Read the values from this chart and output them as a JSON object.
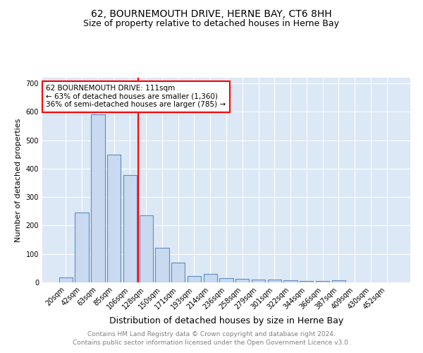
{
  "title": "62, BOURNEMOUTH DRIVE, HERNE BAY, CT6 8HH",
  "subtitle": "Size of property relative to detached houses in Herne Bay",
  "xlabel": "Distribution of detached houses by size in Herne Bay",
  "ylabel": "Number of detached properties",
  "categories": [
    "20sqm",
    "42sqm",
    "63sqm",
    "85sqm",
    "106sqm",
    "128sqm",
    "150sqm",
    "171sqm",
    "193sqm",
    "214sqm",
    "236sqm",
    "258sqm",
    "279sqm",
    "301sqm",
    "322sqm",
    "344sqm",
    "366sqm",
    "387sqm",
    "409sqm",
    "430sqm",
    "452sqm"
  ],
  "values": [
    18,
    247,
    590,
    450,
    378,
    237,
    122,
    70,
    22,
    30,
    14,
    13,
    10,
    9,
    7,
    6,
    5,
    8,
    0,
    0,
    0
  ],
  "bar_color": "#c9d9f0",
  "bar_edge_color": "#5b8ec4",
  "vline_x": 4.5,
  "vline_color": "red",
  "annotation_text": "62 BOURNEMOUTH DRIVE: 111sqm\n← 63% of detached houses are smaller (1,360)\n36% of semi-detached houses are larger (785) →",
  "annotation_box_color": "white",
  "annotation_box_edge": "red",
  "ylim": [
    0,
    720
  ],
  "yticks": [
    0,
    100,
    200,
    300,
    400,
    500,
    600,
    700
  ],
  "background_color": "#dce8f5",
  "footer1": "Contains HM Land Registry data © Crown copyright and database right 2024.",
  "footer2": "Contains public sector information licensed under the Open Government Licence v3.0.",
  "title_fontsize": 10,
  "subtitle_fontsize": 9,
  "xlabel_fontsize": 9,
  "ylabel_fontsize": 8,
  "tick_fontsize": 7,
  "annotation_fontsize": 7.5,
  "footer_fontsize": 6.5
}
